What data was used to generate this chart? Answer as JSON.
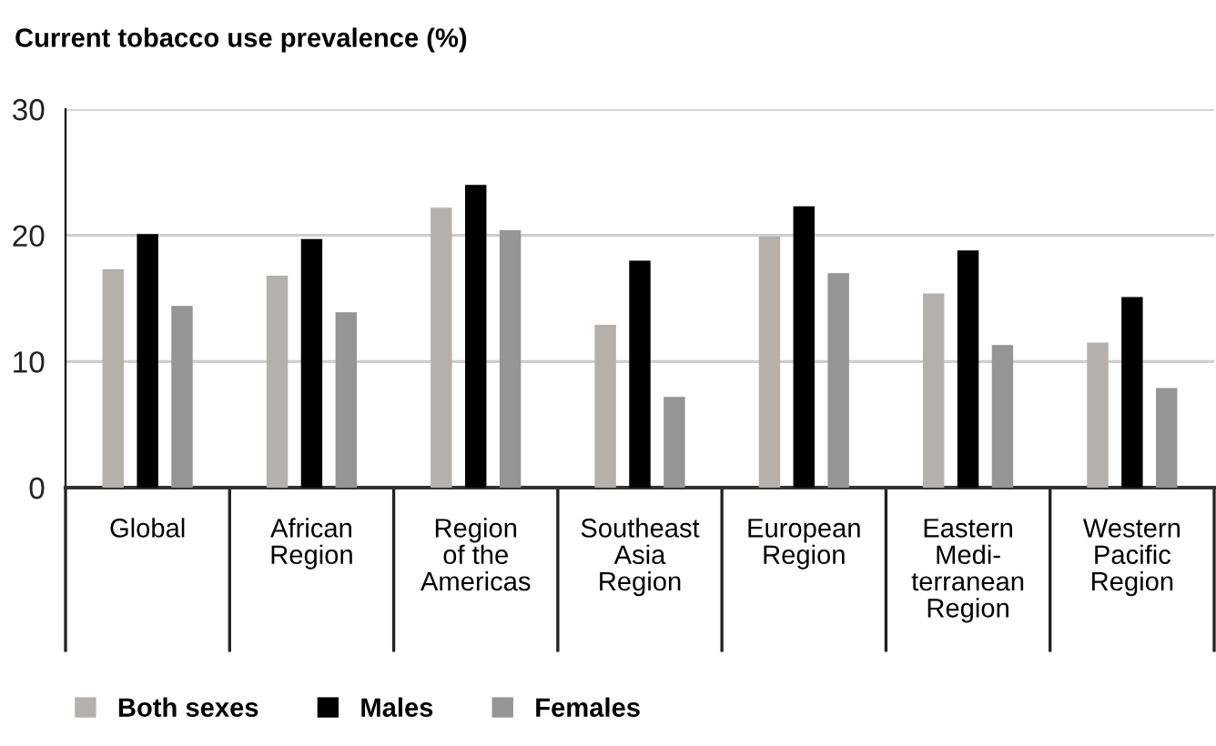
{
  "chart_data": {
    "type": "bar",
    "title": "Current tobacco use prevalence (%)",
    "categories": [
      "Global",
      "African\nRegion",
      "Region\nof the\nAmericas",
      "Southeast\nAsia\nRegion",
      "European\nRegion",
      "Eastern\nMedi-\nterranean\nRegion",
      "Western\nPacific\nRegion"
    ],
    "series": [
      {
        "name": "Both sexes",
        "color": "#b5b0ab",
        "values": [
          17.3,
          16.8,
          22.2,
          12.9,
          19.9,
          15.4,
          11.5
        ]
      },
      {
        "name": "Males",
        "color": "#000000",
        "values": [
          20.1,
          19.7,
          24.0,
          18.0,
          22.3,
          18.8,
          15.1
        ]
      },
      {
        "name": "Females",
        "color": "#959595",
        "values": [
          14.4,
          13.9,
          20.4,
          7.2,
          17.0,
          11.3,
          7.9
        ]
      }
    ],
    "ylim": [
      0,
      30
    ],
    "yticks": [
      0,
      10,
      20,
      30
    ],
    "grid": "y",
    "legend": "bottom left"
  }
}
